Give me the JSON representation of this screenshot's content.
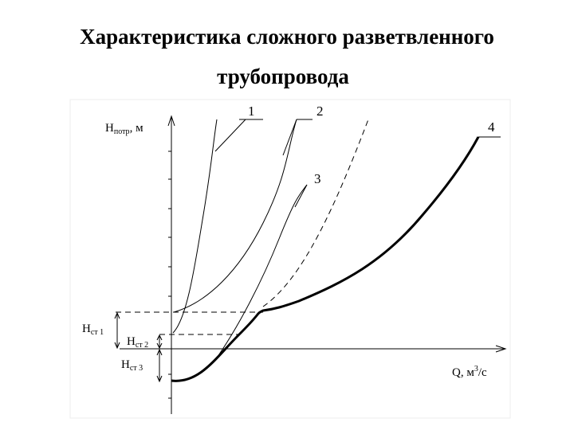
{
  "header": {
    "title_lines": [
      "Характеристика сложного разветвленного",
      "трубопровода"
    ]
  },
  "y_axis": {
    "symbol": "H",
    "subscript": "потр",
    "unit": ", м"
  },
  "x_axis": {
    "symbol": "Q, м",
    "superscript": "3",
    "unit": "/с"
  },
  "static_heads": [
    {
      "symbol": "H",
      "subscript": "ст 1"
    },
    {
      "symbol": "H",
      "subscript": "ст 2"
    },
    {
      "symbol": "H",
      "subscript": "ст 3"
    }
  ],
  "curve_labels": [
    "1",
    "2",
    "3",
    "4"
  ]
}
